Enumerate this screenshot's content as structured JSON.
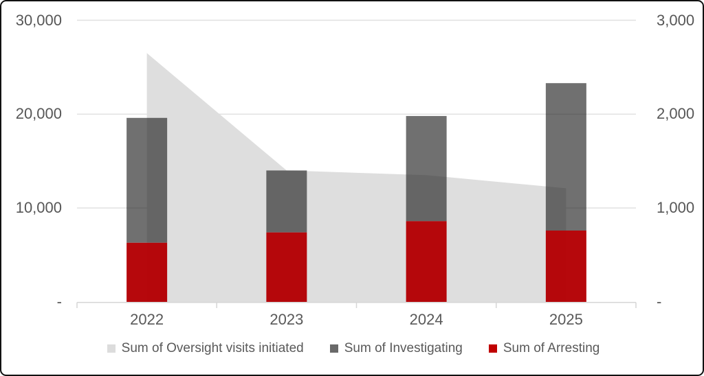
{
  "chart_data": {
    "type": "combo",
    "subtypes": [
      "area",
      "stacked-bar"
    ],
    "categories": [
      "2022",
      "2023",
      "2024",
      "2025"
    ],
    "series": [
      {
        "name": "Sum of Oversight visits initiated",
        "chart_type": "area",
        "axis": "left",
        "values": [
          26500,
          14000,
          13500,
          12100
        ],
        "color": "#dedede"
      },
      {
        "name": "Sum of Investigating",
        "chart_type": "stacked-bar",
        "axis": "right",
        "stack_position": "top",
        "values": [
          1330,
          660,
          1120,
          1570
        ],
        "color": "#6f6f6f"
      },
      {
        "name": "Sum of Arresting",
        "chart_type": "stacked-bar",
        "axis": "right",
        "stack_position": "bottom",
        "values": [
          630,
          740,
          860,
          760
        ],
        "color": "#b60608"
      }
    ],
    "left_axis": {
      "tick_labels": [
        "30,000",
        "20,000",
        "10,000",
        "-"
      ],
      "tick_values": [
        30000,
        20000,
        10000,
        0
      ],
      "range": [
        0,
        30000
      ]
    },
    "right_axis": {
      "tick_labels": [
        "3,000",
        "2,000",
        "1,000",
        "-"
      ],
      "tick_values": [
        3000,
        2000,
        1000,
        0
      ],
      "range": [
        0,
        3000
      ]
    },
    "grid": true,
    "legend_position": "bottom",
    "legend": [
      {
        "label": "Sum of Oversight visits initiated",
        "color": "#dcdcdc"
      },
      {
        "label": "Sum of Investigating",
        "color": "#696969"
      },
      {
        "label": "Sum of Arresting",
        "color": "#c00000"
      }
    ],
    "colors": {
      "gridline": "#e0e0e0",
      "axis_line": "#d6d6d6",
      "tick_label": "#565656",
      "area_fill": "#dedede",
      "bar_gray_rgb": "35,35,35",
      "bar_gray_alpha": 0.65,
      "bar_red_rgb": "180,0,4",
      "bar_red_alpha": 0.97
    }
  }
}
